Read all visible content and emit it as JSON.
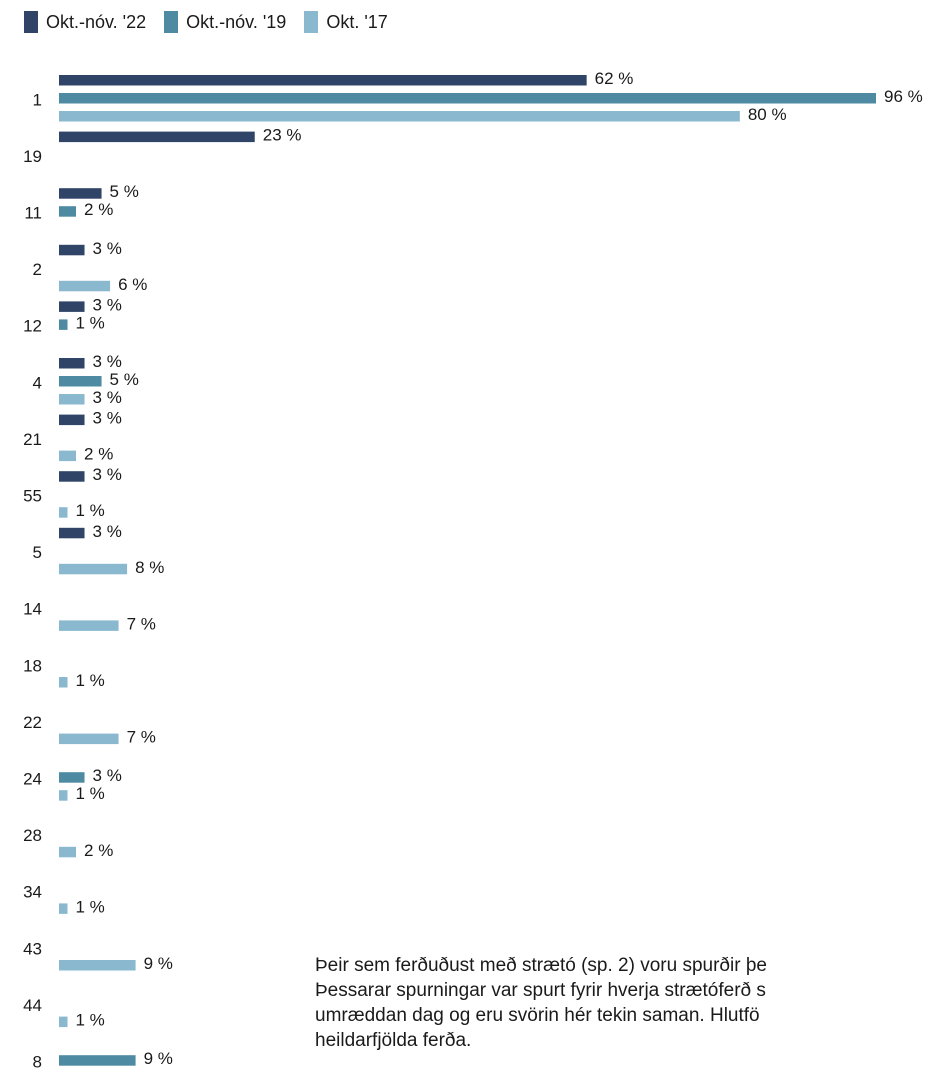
{
  "legend": [
    {
      "name": "Okt.-nóv. '22",
      "color": "#2f4466"
    },
    {
      "name": "Okt.-nóv. '19",
      "color": "#4f8aa3"
    },
    {
      "name": "Okt. '17",
      "color": "#8ab9cf"
    }
  ],
  "note": {
    "lines": [
      "Þeir sem ferðuðust með strætó (sp. 2) voru spurðir þe",
      "Þessarar spurningar var spurt fyrir hverja strætóferð s",
      "umræddan dag og eru svörin hér tekin saman. Hlutfö",
      "heildarfjölda ferða."
    ]
  },
  "chart_data": {
    "type": "bar",
    "orientation": "horizontal",
    "unit": "%",
    "categories": [
      "1",
      "19",
      "11",
      "2",
      "12",
      "4",
      "21",
      "55",
      "5",
      "14",
      "18",
      "22",
      "24",
      "28",
      "34",
      "43",
      "44",
      "8"
    ],
    "series": [
      {
        "name": "Okt.-nóv. '22",
        "color": "#2f4466",
        "values": [
          62,
          23,
          5,
          3,
          3,
          3,
          3,
          3,
          3,
          null,
          null,
          null,
          null,
          null,
          null,
          null,
          null,
          null
        ]
      },
      {
        "name": "Okt.-nóv. '19",
        "color": "#4f8aa3",
        "values": [
          96,
          null,
          2,
          null,
          1,
          5,
          null,
          null,
          null,
          null,
          null,
          null,
          3,
          null,
          null,
          null,
          null,
          9
        ]
      },
      {
        "name": "Okt. '17",
        "color": "#8ab9cf",
        "values": [
          80,
          null,
          null,
          6,
          null,
          3,
          2,
          1,
          8,
          7,
          1,
          7,
          1,
          2,
          1,
          9,
          1,
          null
        ]
      }
    ],
    "value_labels": [
      [
        "62 %",
        "96 %",
        "80 %"
      ],
      [
        "23 %",
        null,
        null
      ],
      [
        "5 %",
        "2 %",
        null
      ],
      [
        "3 %",
        null,
        "6 %"
      ],
      [
        "3 %",
        "1 %",
        null
      ],
      [
        "3 %",
        "5 %",
        "3 %"
      ],
      [
        "3 %",
        null,
        "2 %"
      ],
      [
        "3 %",
        null,
        "1 %"
      ],
      [
        "3 %",
        null,
        "8 %"
      ],
      [
        null,
        null,
        "7 %"
      ],
      [
        null,
        null,
        "1 %"
      ],
      [
        null,
        null,
        "7 %"
      ],
      [
        null,
        "3 %",
        "1 %"
      ],
      [
        null,
        null,
        "2 %"
      ],
      [
        null,
        null,
        "1 %"
      ],
      [
        null,
        null,
        "9 %"
      ],
      [
        null,
        null,
        "1 %"
      ],
      [
        null,
        "9 %",
        null
      ]
    ],
    "xlim": [
      0,
      96
    ],
    "grid": false,
    "legend_position": "top-left"
  }
}
